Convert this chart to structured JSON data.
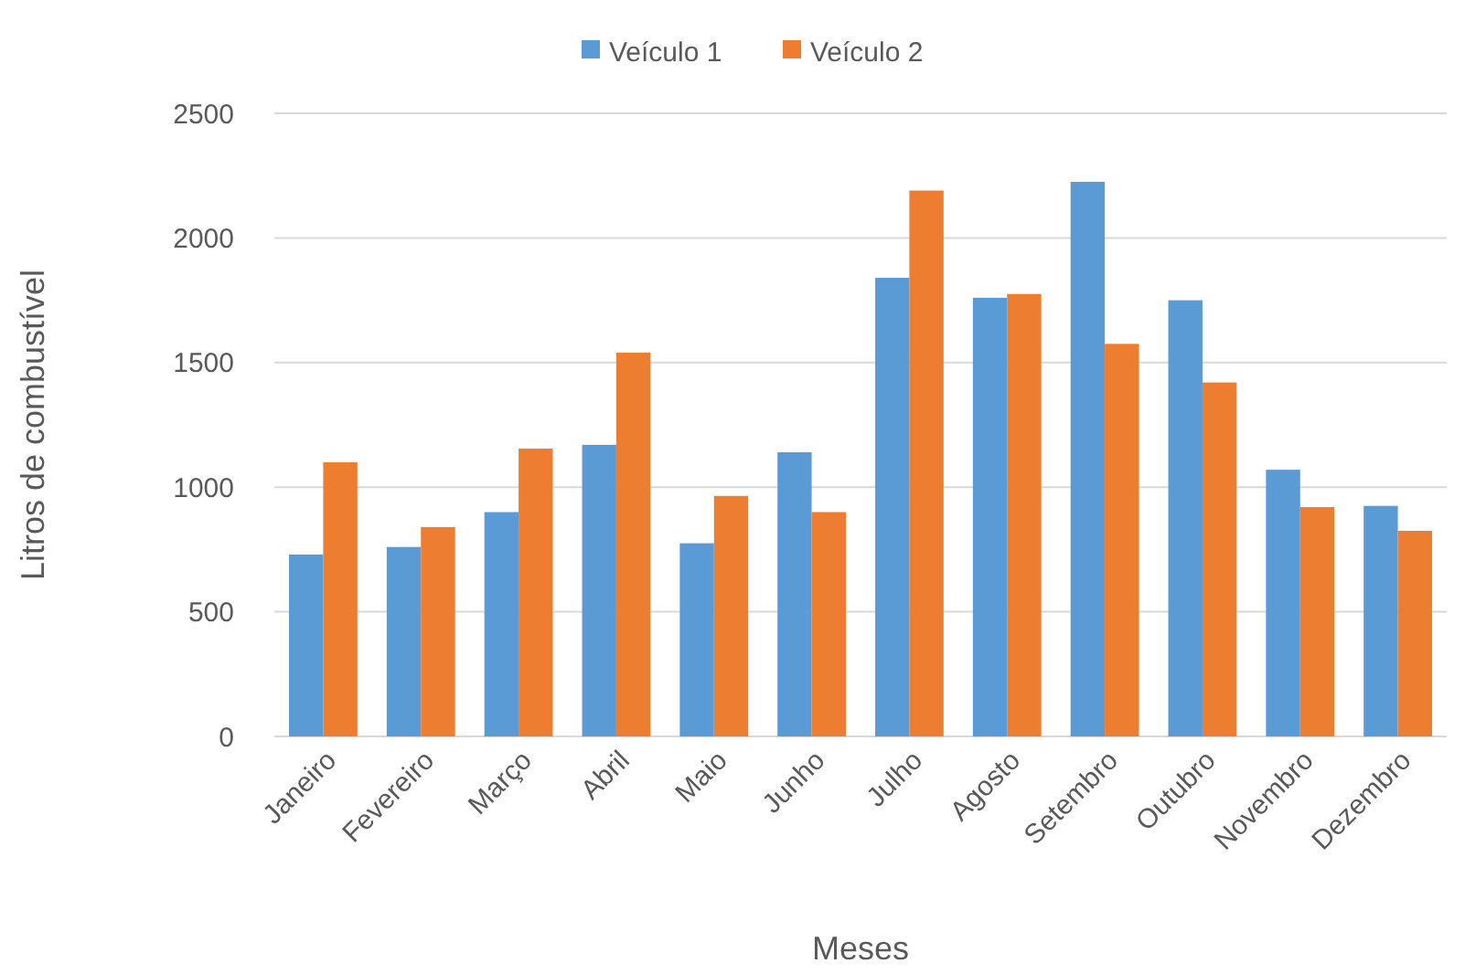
{
  "chart_data": {
    "type": "bar",
    "xlabel": "Meses",
    "ylabel": "Litros de combustível",
    "categories": [
      "Janeiro",
      "Fevereiro",
      "Março",
      "Abril",
      "Maio",
      "Junho",
      "Julho",
      "Agosto",
      "Setembro",
      "Outubro",
      "Novembro",
      "Dezembro"
    ],
    "series": [
      {
        "name": "Veículo 1",
        "color": "#5b9bd5",
        "values": [
          730,
          760,
          900,
          1170,
          775,
          1140,
          1840,
          1760,
          2225,
          1750,
          1070,
          925
        ]
      },
      {
        "name": "Veículo 2",
        "color": "#ed7d31",
        "values": [
          1100,
          840,
          1155,
          1540,
          965,
          900,
          2190,
          1775,
          1575,
          1420,
          920,
          825
        ]
      }
    ],
    "ylim": [
      0,
      2500
    ],
    "yticks": [
      0,
      500,
      1000,
      1500,
      2000,
      2500
    ],
    "grid": "y",
    "legend": "top"
  }
}
